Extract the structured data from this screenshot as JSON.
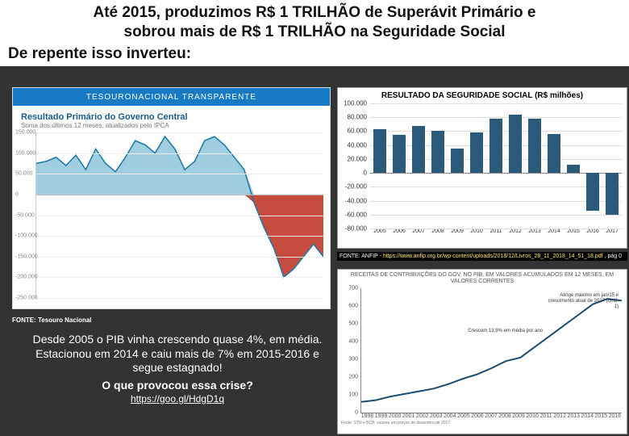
{
  "header": {
    "title_line1": "Até 2015, produzimos R$ 1 TRILHÃO de Superávit Primário e",
    "title_line2": "sobrou mais de R$ 1 TRILHÃO na Seguridade Social",
    "subtitle": "De repente isso inverteu:",
    "title_fontsize": 19,
    "subtitle_fontsize": 19
  },
  "chart_a": {
    "type": "area",
    "header_brand": "TESOURONACIONAL TRANSPARENTE",
    "title": "Resultado Primário do Governo Central",
    "subtitle": "Soma dos últimos 12 meses, atualizados pelo IPCA",
    "ylim": [
      -250000,
      150000
    ],
    "ytick_step": 50000,
    "yticks": [
      150000,
      100000,
      50000,
      0,
      -50000,
      -100000,
      -150000,
      -200000,
      -250000
    ],
    "line_color": "#1978a5",
    "fill_pos_color": "#8fc6db",
    "fill_neg_color": "#c0392b",
    "grid_color": "#eeeeee",
    "background_color": "#ffffff",
    "series": [
      75000,
      80000,
      90000,
      70000,
      95000,
      60000,
      110000,
      75000,
      55000,
      90000,
      130000,
      120000,
      100000,
      140000,
      110000,
      60000,
      80000,
      130000,
      140000,
      120000,
      90000,
      60000,
      -20000,
      -80000,
      -130000,
      -200000,
      -180000,
      -150000,
      -120000,
      -150000
    ]
  },
  "chart_b": {
    "type": "bar",
    "title": "RESULTADO DA SEGURIDADE SOCIAL (R$ milhões)",
    "categories": [
      "2005",
      "2006",
      "2007",
      "2008",
      "2009",
      "2010",
      "2011",
      "2012",
      "2013",
      "2014",
      "2015",
      "2016",
      "2017"
    ],
    "values": [
      63000,
      55000,
      68000,
      60000,
      35000,
      58000,
      78000,
      84000,
      78000,
      56000,
      12000,
      -55000,
      -60000
    ],
    "bar_color": "#2c5a7a",
    "ylim": [
      -80000,
      100000
    ],
    "ytick_step": 20000,
    "yticks": [
      100000,
      80000,
      60000,
      40000,
      20000,
      0,
      -20000,
      -40000,
      -60000,
      -80000
    ],
    "grid_color": "#dddddd",
    "zero_color": "#888888",
    "background_color": "#ffffff",
    "bar_width": 0.7
  },
  "chart_c": {
    "type": "line",
    "title": "RECEITAS DE CONTRIBUIÇÕES DO GOV. NO PIB, EM VALORES ACUMULADOS EM 12 MESES, EM VALORES CORRENTES",
    "categories": [
      "1998",
      "1999",
      "2000",
      "2001",
      "2002",
      "2003",
      "2004",
      "2005",
      "2006",
      "2007",
      "2008",
      "2009",
      "2010",
      "2011",
      "2012",
      "2013",
      "2014",
      "2015",
      "2016"
    ],
    "series": [
      60,
      70,
      90,
      105,
      120,
      135,
      160,
      190,
      215,
      250,
      290,
      310,
      370,
      430,
      490,
      550,
      610,
      640,
      630
    ],
    "ylim": [
      0,
      700
    ],
    "yticks": [
      0,
      100,
      200,
      300,
      400,
      500,
      600,
      700
    ],
    "line_color": "#1a4a6e",
    "grid_color": "#e5e5e5",
    "background_color": "#ffffff",
    "annot1": "Crescem 13,9% em média por ano",
    "annot2": "Atinge máximo em jan/15 e crescimento atual de 2017 (Gráf. 1)",
    "footer": "Fonte: STN e BCB; valores em preços de dezembro de 2017"
  },
  "sources": {
    "chart_a": "FONTE: Tesouro Nacional",
    "chart_b_label": "FONTE: ANFIP - ",
    "chart_b_link": "https://www.anfip.org.br/wp-content/uploads/2018/12/Livros_28_11_2018_14_51_18.pdf",
    "chart_b_suffix": " , pág 0"
  },
  "textblock": {
    "body": "Desde 2005 o PIB vinha crescendo quase 4%, em média. Estacionou em 2014 e caiu mais de 7% em 2015-2016 e segue estagnado!",
    "question": "O que provocou essa crise?",
    "link": "https://goo.gl/HdgD1q"
  }
}
